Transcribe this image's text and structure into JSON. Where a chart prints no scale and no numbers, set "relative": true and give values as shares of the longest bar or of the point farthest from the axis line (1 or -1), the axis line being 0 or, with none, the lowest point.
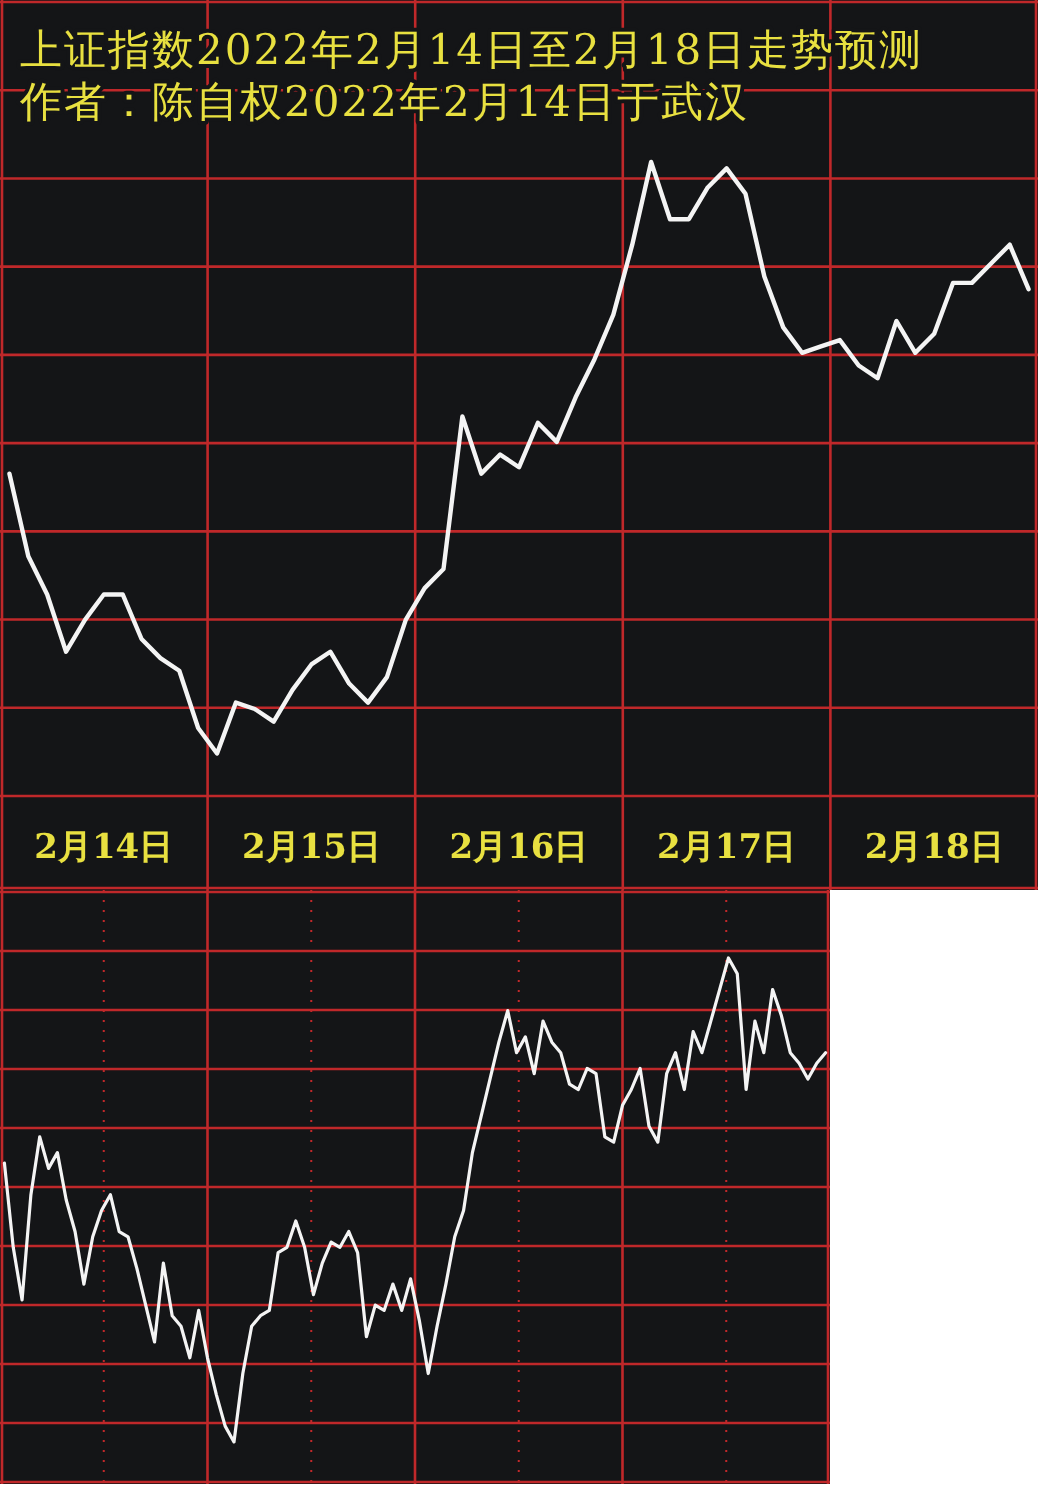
{
  "chart_data": [
    {
      "type": "line",
      "title": "上证指数2022年2月14日至2月18日走势预测",
      "subtitle": "作者：陈自权2022年2月14日于武汉",
      "relative": true,
      "grid": true,
      "categories": [
        null,
        null,
        null,
        null,
        null,
        "2月14日",
        null,
        null,
        null,
        null,
        null,
        null,
        null,
        null,
        null,
        null,
        "2月15日",
        null,
        null,
        null,
        null,
        null,
        null,
        null,
        null,
        null,
        null,
        "2月16日",
        null,
        null,
        null,
        null,
        null,
        null,
        null,
        null,
        null,
        null,
        "2月17日",
        null,
        null,
        null,
        null,
        null,
        null,
        null,
        null,
        null,
        null,
        "2月18日",
        null,
        null,
        null,
        null,
        null
      ],
      "series": [
        {
          "color": "#f4f4f4",
          "values": [
            0.51,
            0.38,
            0.32,
            0.23,
            0.28,
            0.32,
            0.32,
            0.25,
            0.22,
            0.2,
            0.11,
            0.07,
            0.15,
            0.14,
            0.12,
            0.17,
            0.21,
            0.23,
            0.18,
            0.15,
            0.19,
            0.28,
            0.33,
            0.36,
            0.6,
            0.51,
            0.54,
            0.52,
            0.59,
            0.56,
            0.63,
            0.69,
            0.76,
            0.87,
            1,
            0.91,
            0.91,
            0.96,
            0.99,
            0.95,
            0.82,
            0.74,
            0.7,
            0.71,
            0.72,
            0.68,
            0.66,
            0.75,
            0.7,
            0.73,
            0.81,
            0.81,
            0.84,
            0.87,
            0.8
          ]
        }
      ]
    },
    {
      "type": "line",
      "relative": true,
      "grid": true,
      "categories": [
        null,
        null,
        null,
        null,
        null,
        null,
        null,
        null,
        null,
        null,
        null,
        null,
        null,
        null,
        null,
        null,
        null,
        null,
        null,
        null,
        null,
        null,
        null,
        null,
        null,
        null,
        null,
        null,
        null,
        null,
        null,
        null,
        null,
        null,
        null,
        null,
        null,
        null,
        null,
        null,
        null,
        null,
        null,
        null,
        null,
        null,
        null,
        null,
        null,
        null,
        null,
        null,
        null,
        null,
        null,
        null,
        null,
        null,
        null,
        null,
        null,
        null,
        null,
        null,
        null,
        null,
        null,
        null,
        null,
        null,
        null,
        null,
        null,
        null,
        null,
        null,
        null,
        null,
        null,
        null,
        null,
        null,
        null,
        null,
        null,
        null,
        null,
        null,
        null,
        null,
        null,
        null,
        null,
        null
      ],
      "series": [
        {
          "color": "#f4f4f4",
          "values": [
            0.61,
            0.45,
            0.35,
            0.55,
            0.66,
            0.6,
            0.63,
            0.54,
            0.48,
            0.38,
            0.47,
            0.52,
            0.55,
            0.48,
            0.47,
            0.41,
            0.34,
            0.27,
            0.42,
            0.32,
            0.3,
            0.24,
            0.33,
            0.24,
            0.17,
            0.11,
            0.08,
            0.21,
            0.3,
            0.32,
            0.33,
            0.44,
            0.45,
            0.5,
            0.45,
            0.36,
            0.42,
            0.46,
            0.45,
            0.48,
            0.44,
            0.28,
            0.34,
            0.33,
            0.38,
            0.33,
            0.39,
            0.31,
            0.21,
            0.3,
            0.38,
            0.47,
            0.52,
            0.63,
            0.7,
            0.77,
            0.84,
            0.9,
            0.82,
            0.85,
            0.78,
            0.88,
            0.84,
            0.82,
            0.76,
            0.75,
            0.79,
            0.78,
            0.66,
            0.65,
            0.72,
            0.75,
            0.79,
            0.68,
            0.65,
            0.78,
            0.82,
            0.75,
            0.86,
            0.82,
            0.88,
            0.94,
            1,
            0.97,
            0.75,
            0.88,
            0.82,
            0.94,
            0.89,
            0.82,
            0.8,
            0.77,
            0.8,
            0.82
          ]
        }
      ]
    }
  ]
}
